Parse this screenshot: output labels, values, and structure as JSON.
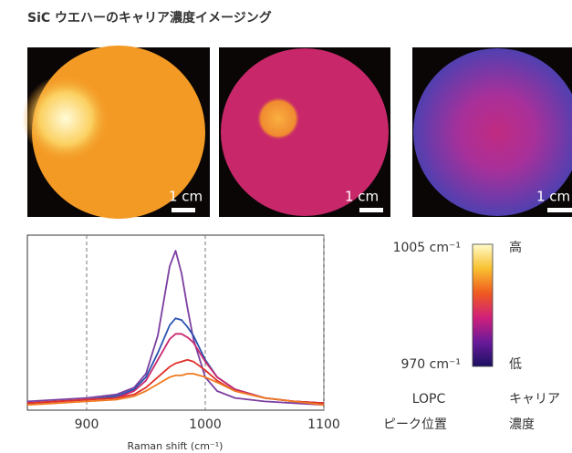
{
  "title": "SiC ウエハーのキャリア濃度イメージング",
  "images": [
    {
      "scale_label": "1 cm"
    },
    {
      "scale_label": "1 cm"
    },
    {
      "scale_label": "1 cm"
    }
  ],
  "colorbar": {
    "top_label": "1005 cm⁻¹",
    "bottom_label": "970 cm⁻¹",
    "high_label": "高",
    "low_label": "低",
    "left_caption": [
      "LOPC",
      "ピーク位置"
    ],
    "right_caption": [
      "キャリア",
      "濃度"
    ]
  },
  "chart_data": {
    "type": "line",
    "x_label": "Raman shift (cm⁻¹)",
    "x": [
      850,
      875,
      900,
      925,
      940,
      950,
      960,
      970,
      975,
      980,
      985,
      990,
      1000,
      1010,
      1025,
      1050,
      1075,
      1100
    ],
    "xlim": [
      850,
      1100
    ],
    "xticks": [
      900,
      1000,
      1100
    ],
    "ylim": [
      0,
      100
    ],
    "grid": true,
    "series": [
      {
        "color": "#7b3fa0",
        "values": [
          4,
          5,
          6,
          8,
          12,
          20,
          42,
          82,
          91,
          78,
          58,
          40,
          18,
          10,
          6,
          4,
          3,
          2
        ]
      },
      {
        "color": "#2a52b0",
        "values": [
          3,
          4,
          5,
          7,
          11,
          18,
          32,
          48,
          52,
          51,
          47,
          42,
          28,
          18,
          11,
          6,
          4,
          3
        ]
      },
      {
        "color": "#c8286e",
        "values": [
          3,
          4,
          5,
          6,
          10,
          16,
          28,
          40,
          43,
          43,
          41,
          38,
          27,
          18,
          11,
          6,
          4,
          3
        ]
      },
      {
        "color": "#e0302a",
        "values": [
          3,
          4,
          5,
          6,
          8,
          12,
          18,
          24,
          26,
          27,
          28,
          27,
          22,
          16,
          10,
          6,
          4,
          3
        ]
      },
      {
        "color": "#f07a20",
        "values": [
          2,
          3,
          4,
          5,
          7,
          10,
          14,
          18,
          19,
          19,
          20,
          20,
          18,
          15,
          10,
          6,
          4,
          2
        ]
      }
    ]
  }
}
